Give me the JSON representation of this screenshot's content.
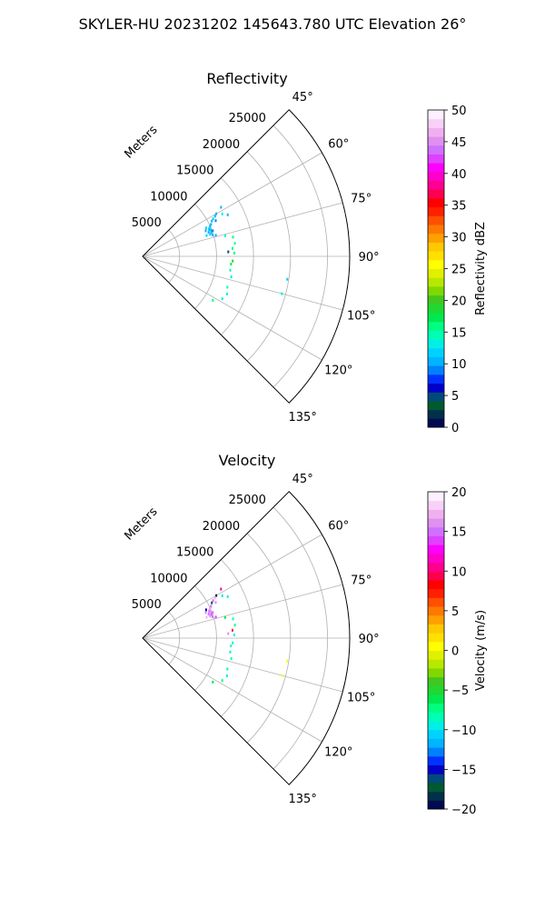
{
  "figure": {
    "suptitle": "SKYLER-HU  20231202  145643.780 UTC Elevation 26°"
  },
  "chart_data": [
    {
      "type": "scatter",
      "subtype": "polar-sector (PPI)",
      "title": "Reflectivity",
      "radial_label": "Meters",
      "radial_ticks": [
        "5000",
        "10000",
        "15000",
        "20000",
        "25000"
      ],
      "radial_tick_values": [
        5000,
        10000,
        15000,
        20000,
        25000
      ],
      "angle_ticks": [
        "45°",
        "60°",
        "75°",
        "90°",
        "105°",
        "120°",
        "135°"
      ],
      "angle_tick_values": [
        45,
        60,
        75,
        90,
        105,
        120,
        135
      ],
      "theta_range_deg": [
        45,
        135
      ],
      "r_range_m": [
        0,
        28000
      ],
      "grid": true,
      "colorbar": {
        "label": "Reflectivity dBZ",
        "ticks": [
          "0",
          "5",
          "10",
          "15",
          "20",
          "25",
          "30",
          "35",
          "40",
          "45",
          "50"
        ],
        "range": [
          0,
          50
        ],
        "colors": [
          "#000a50",
          "#00304a",
          "#005a30",
          "#004a7a",
          "#0000c8",
          "#0032ff",
          "#0080ff",
          "#00b4ff",
          "#00d2ff",
          "#00f0e6",
          "#00ffb4",
          "#00ff80",
          "#00e850",
          "#20d830",
          "#40c820",
          "#80d800",
          "#b8e800",
          "#e0f000",
          "#ffff00",
          "#ffe000",
          "#ffc800",
          "#ffa000",
          "#ff7800",
          "#ff5000",
          "#ff2000",
          "#ff0000",
          "#ff0050",
          "#ff0090",
          "#ff00c8",
          "#ff00ff",
          "#e040ff",
          "#d070ff",
          "#e090f0",
          "#f0b0f0",
          "#f8d0f8",
          "#fff0ff"
        ]
      },
      "points": [
        {
          "theta": 60,
          "r": 11500,
          "v": 10
        },
        {
          "theta": 61,
          "r": 11200,
          "v": 11
        },
        {
          "theta": 62,
          "r": 10800,
          "v": 12
        },
        {
          "theta": 63,
          "r": 10500,
          "v": 10
        },
        {
          "theta": 64,
          "r": 11000,
          "v": 9
        },
        {
          "theta": 65,
          "r": 10200,
          "v": 11
        },
        {
          "theta": 66,
          "r": 10000,
          "v": 10
        },
        {
          "theta": 67,
          "r": 9800,
          "v": 12
        },
        {
          "theta": 68,
          "r": 9700,
          "v": 11
        },
        {
          "theta": 69,
          "r": 9900,
          "v": 10
        },
        {
          "theta": 70,
          "r": 10100,
          "v": 9
        },
        {
          "theta": 71,
          "r": 9800,
          "v": 11
        },
        {
          "theta": 72,
          "r": 9600,
          "v": 12
        },
        {
          "theta": 73,
          "r": 9900,
          "v": 10
        },
        {
          "theta": 74,
          "r": 10300,
          "v": 11
        },
        {
          "theta": 66,
          "r": 9400,
          "v": 12
        },
        {
          "theta": 68,
          "r": 9200,
          "v": 11
        },
        {
          "theta": 70,
          "r": 9500,
          "v": 10
        },
        {
          "theta": 72,
          "r": 9100,
          "v": 12
        },
        {
          "theta": 62,
          "r": 12200,
          "v": 13
        },
        {
          "theta": 58,
          "r": 12500,
          "v": 11
        },
        {
          "theta": 64,
          "r": 12800,
          "v": 10
        },
        {
          "theta": 76,
          "r": 11500,
          "v": 15
        },
        {
          "theta": 78,
          "r": 12500,
          "v": 16
        },
        {
          "theta": 82,
          "r": 12600,
          "v": 15
        },
        {
          "theta": 85,
          "r": 12200,
          "v": 16
        },
        {
          "theta": 88,
          "r": 12400,
          "v": 16
        },
        {
          "theta": 87,
          "r": 11600,
          "v": 5
        },
        {
          "theta": 93,
          "r": 12200,
          "v": 20
        },
        {
          "theta": 95,
          "r": 12000,
          "v": 18
        },
        {
          "theta": 99,
          "r": 12000,
          "v": 14
        },
        {
          "theta": 103,
          "r": 12300,
          "v": 13
        },
        {
          "theta": 110,
          "r": 12200,
          "v": 14
        },
        {
          "theta": 114,
          "r": 12500,
          "v": 13
        },
        {
          "theta": 118,
          "r": 12200,
          "v": 13
        },
        {
          "theta": 122,
          "r": 11200,
          "v": 16
        },
        {
          "theta": 105,
          "r": 19500,
          "v": 13
        },
        {
          "theta": 99,
          "r": 19800,
          "v": 12
        }
      ]
    },
    {
      "type": "scatter",
      "subtype": "polar-sector (PPI)",
      "title": "Velocity",
      "radial_label": "Meters",
      "radial_ticks": [
        "5000",
        "10000",
        "15000",
        "20000",
        "25000"
      ],
      "radial_tick_values": [
        5000,
        10000,
        15000,
        20000,
        25000
      ],
      "angle_ticks": [
        "45°",
        "60°",
        "75°",
        "90°",
        "105°",
        "120°",
        "135°"
      ],
      "angle_tick_values": [
        45,
        60,
        75,
        90,
        105,
        120,
        135
      ],
      "theta_range_deg": [
        45,
        135
      ],
      "r_range_m": [
        0,
        28000
      ],
      "grid": true,
      "colorbar": {
        "label": "Velocity (m/s)",
        "ticks": [
          "−20",
          "−15",
          "−10",
          "−5",
          "0",
          "5",
          "10",
          "15",
          "20"
        ],
        "range": [
          -20,
          20
        ],
        "colors": [
          "#000a50",
          "#00304a",
          "#005a30",
          "#004a7a",
          "#0000c8",
          "#0032ff",
          "#0080ff",
          "#00b4ff",
          "#00d2ff",
          "#00f0e6",
          "#00ffb4",
          "#00ff80",
          "#00e850",
          "#20d830",
          "#40c820",
          "#80d800",
          "#b8e800",
          "#e0f000",
          "#ffff00",
          "#ffe000",
          "#ffc800",
          "#ffa000",
          "#ff7800",
          "#ff5000",
          "#ff2000",
          "#ff0000",
          "#ff0050",
          "#ff0090",
          "#ff00c8",
          "#ff00ff",
          "#e040ff",
          "#d070ff",
          "#e090f0",
          "#f0b0f0",
          "#f8d0f8",
          "#fff0ff"
        ]
      },
      "points": [
        {
          "theta": 60,
          "r": 11500,
          "v": -18
        },
        {
          "theta": 61,
          "r": 11200,
          "v": 17
        },
        {
          "theta": 62,
          "r": 10800,
          "v": 15
        },
        {
          "theta": 63,
          "r": 10500,
          "v": -16
        },
        {
          "theta": 64,
          "r": 11000,
          "v": 16
        },
        {
          "theta": 65,
          "r": 10200,
          "v": 15
        },
        {
          "theta": 66,
          "r": 10000,
          "v": 16
        },
        {
          "theta": 67,
          "r": 9800,
          "v": 17
        },
        {
          "theta": 68,
          "r": 9700,
          "v": 15
        },
        {
          "theta": 69,
          "r": 9900,
          "v": 16
        },
        {
          "theta": 70,
          "r": 10100,
          "v": 15
        },
        {
          "theta": 71,
          "r": 9800,
          "v": 14
        },
        {
          "theta": 72,
          "r": 9600,
          "v": 16
        },
        {
          "theta": 73,
          "r": 9900,
          "v": 15
        },
        {
          "theta": 74,
          "r": 10300,
          "v": 14
        },
        {
          "theta": 66,
          "r": 9400,
          "v": -15
        },
        {
          "theta": 68,
          "r": 9200,
          "v": 16
        },
        {
          "theta": 70,
          "r": 9500,
          "v": 15
        },
        {
          "theta": 72,
          "r": 9100,
          "v": 17
        },
        {
          "theta": 62,
          "r": 12200,
          "v": -10
        },
        {
          "theta": 58,
          "r": 12500,
          "v": 11
        },
        {
          "theta": 64,
          "r": 12800,
          "v": -9
        },
        {
          "theta": 76,
          "r": 11500,
          "v": -6
        },
        {
          "theta": 78,
          "r": 12500,
          "v": -8
        },
        {
          "theta": 82,
          "r": 12600,
          "v": -7
        },
        {
          "theta": 85,
          "r": 12200,
          "v": 9
        },
        {
          "theta": 88,
          "r": 12400,
          "v": -9
        },
        {
          "theta": 87,
          "r": 11600,
          "v": 16
        },
        {
          "theta": 93,
          "r": 12200,
          "v": -9
        },
        {
          "theta": 95,
          "r": 12000,
          "v": -8
        },
        {
          "theta": 99,
          "r": 12000,
          "v": -9
        },
        {
          "theta": 103,
          "r": 12300,
          "v": -8
        },
        {
          "theta": 110,
          "r": 12200,
          "v": -8
        },
        {
          "theta": 114,
          "r": 12500,
          "v": -9
        },
        {
          "theta": 118,
          "r": 12200,
          "v": -7
        },
        {
          "theta": 122,
          "r": 11200,
          "v": -6
        },
        {
          "theta": 105,
          "r": 19500,
          "v": 1
        },
        {
          "theta": 99,
          "r": 19800,
          "v": 0
        }
      ]
    }
  ]
}
